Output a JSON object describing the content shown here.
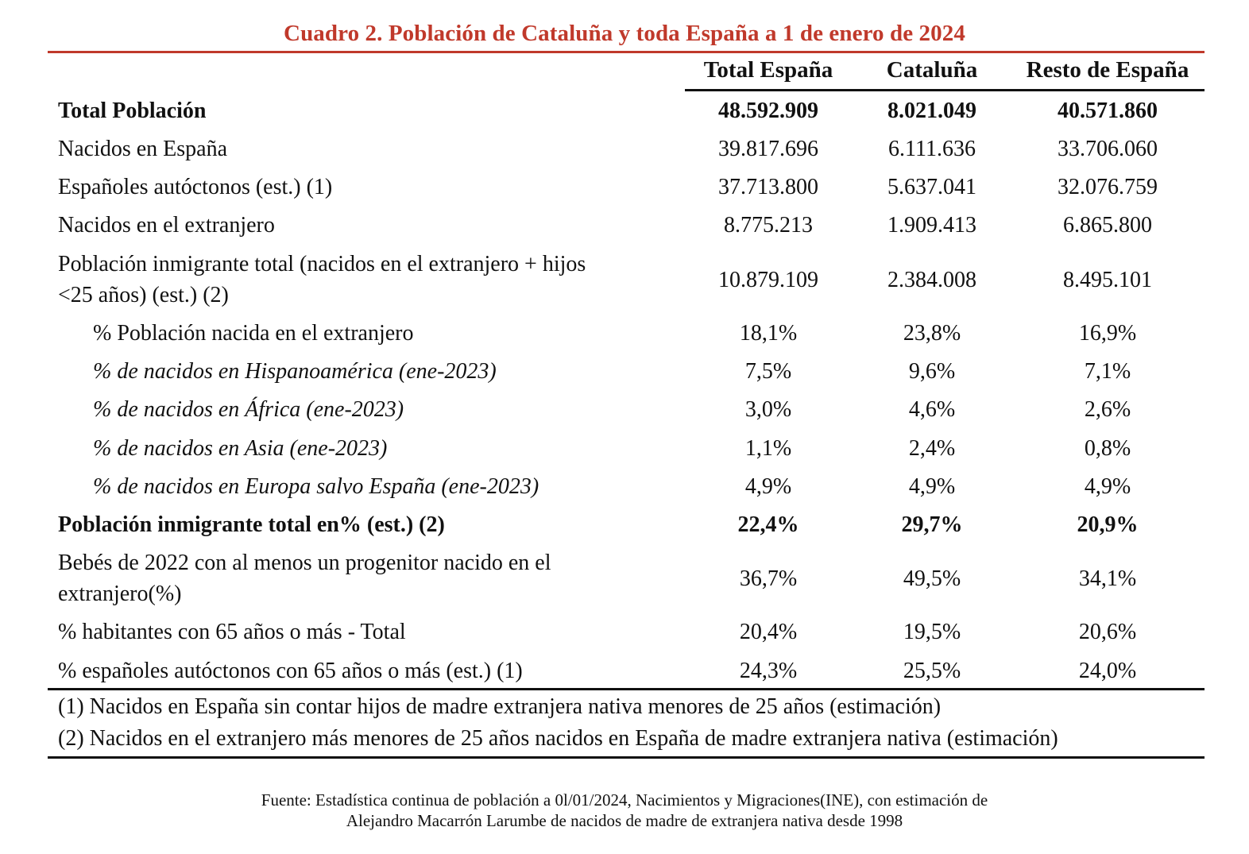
{
  "title": "Cuadro 2. Población de Cataluña y toda España a 1 de enero de 2024",
  "headers": [
    "Total España",
    "Cataluña",
    "Resto de España"
  ],
  "rows": [
    {
      "label": "Total Población",
      "values": [
        "48.592.909",
        "8.021.049",
        "40.571.860"
      ]
    },
    {
      "label": "Nacidos en España",
      "values": [
        "39.817.696",
        "6.111.636",
        "33.706.060"
      ]
    },
    {
      "label": "Españoles autóctonos (est.) (1)",
      "values": [
        "37.713.800",
        "5.637.041",
        "32.076.759"
      ]
    },
    {
      "label": "Nacidos en el extranjero",
      "values": [
        "8.775.213",
        "1.909.413",
        "6.865.800"
      ]
    },
    {
      "label": "Población inmigrante total (nacidos en el extranjero + hijos <25 años) (est.) (2)",
      "values": [
        "10.879.109",
        "2.384.008",
        "8.495.101"
      ]
    },
    {
      "label": "% Población nacida en el extranjero",
      "values": [
        "18,1%",
        "23,8%",
        "16,9%"
      ]
    },
    {
      "label": "% de nacidos en Hispanoamérica (ene-2023)",
      "values": [
        "7,5%",
        "9,6%",
        "7,1%"
      ]
    },
    {
      "label": "% de nacidos en África (ene-2023)",
      "values": [
        "3,0%",
        "4,6%",
        "2,6%"
      ]
    },
    {
      "label": "% de nacidos en Asia (ene-2023)",
      "values": [
        "1,1%",
        "2,4%",
        "0,8%"
      ]
    },
    {
      "label": "% de nacidos en Europa salvo España (ene-2023)",
      "values": [
        "4,9%",
        "4,9%",
        "4,9%"
      ]
    },
    {
      "label": "Población inmigrante total en% (est.) (2)",
      "values": [
        "22,4%",
        "29,7%",
        "20,9%"
      ]
    },
    {
      "label": "Bebés de 2022 con al menos un progenitor nacido en el extranjero(%)",
      "values": [
        "36,7%",
        "49,5%",
        "34,1%"
      ]
    },
    {
      "label": "% habitantes con 65 años o más - Total",
      "values": [
        "20,4%",
        "19,5%",
        "20,6%"
      ]
    },
    {
      "label": "% españoles autóctonos con 65 años o más (est.) (1)",
      "values": [
        "24,3%",
        "25,5%",
        "24,0%"
      ]
    }
  ],
  "notes": [
    "(1) Nacidos en España sin contar hijos de madre extranjera nativa menores de 25 años (estimación)",
    "(2) Nacidos en el extranjero más menores de 25 años nacidos en España de madre extranjera nativa (estimación)"
  ],
  "source": [
    "Fuente: Estadística continua de población a 0l/01/2024, Nacimientos y Migraciones(INE), con estimación de",
    "Alejandro Macarrón Larumbe de nacidos de madre de extranjera nativa desde 1998"
  ]
}
